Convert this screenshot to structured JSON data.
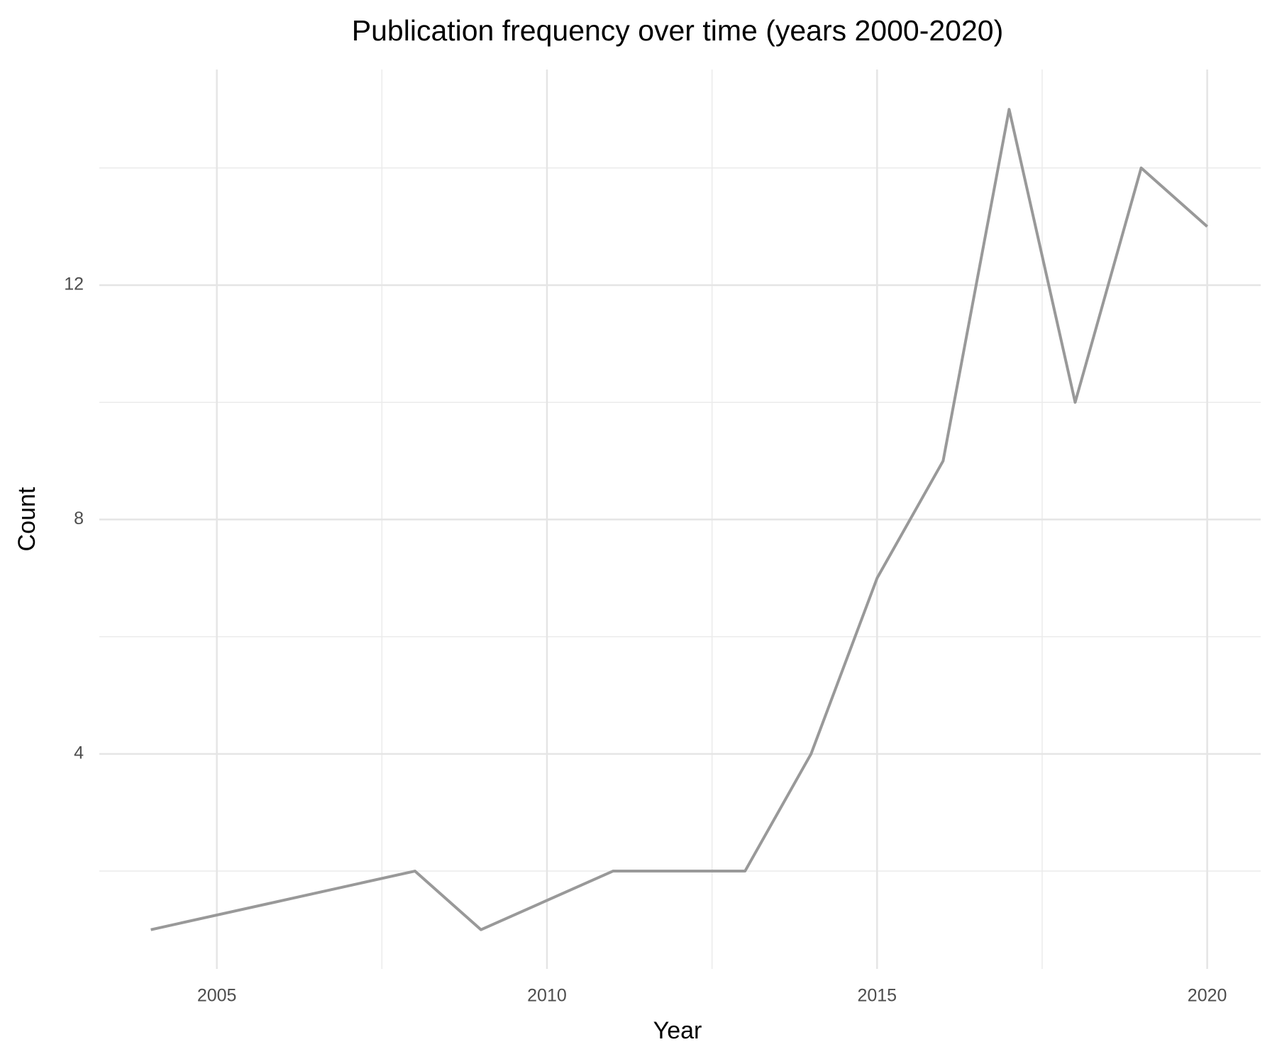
{
  "chart_data": {
    "type": "line",
    "title": "Publication frequency over time (years 2000-2020)",
    "x_label": "Year",
    "y_label": "Count",
    "x": [
      2004,
      2008,
      2009,
      2011,
      2013,
      2014,
      2015,
      2016,
      2017,
      2018,
      2019,
      2020
    ],
    "series": [
      {
        "color": "#999999",
        "values": [
          1,
          2,
          1,
          2,
          2,
          4,
          7,
          9,
          15,
          10,
          14,
          13
        ]
      }
    ],
    "xlim": [
      2003.22,
      2020.81
    ],
    "xticks": [
      2005,
      2010,
      2015,
      2020
    ],
    "x_minor_grid": [
      2007.5,
      2012.5,
      2017.5
    ],
    "ylim": [
      0.33,
      15.68
    ],
    "yticks": [
      4,
      8,
      12
    ],
    "y_minor_grid": [
      2,
      6,
      10,
      14
    ],
    "grid": true
  }
}
